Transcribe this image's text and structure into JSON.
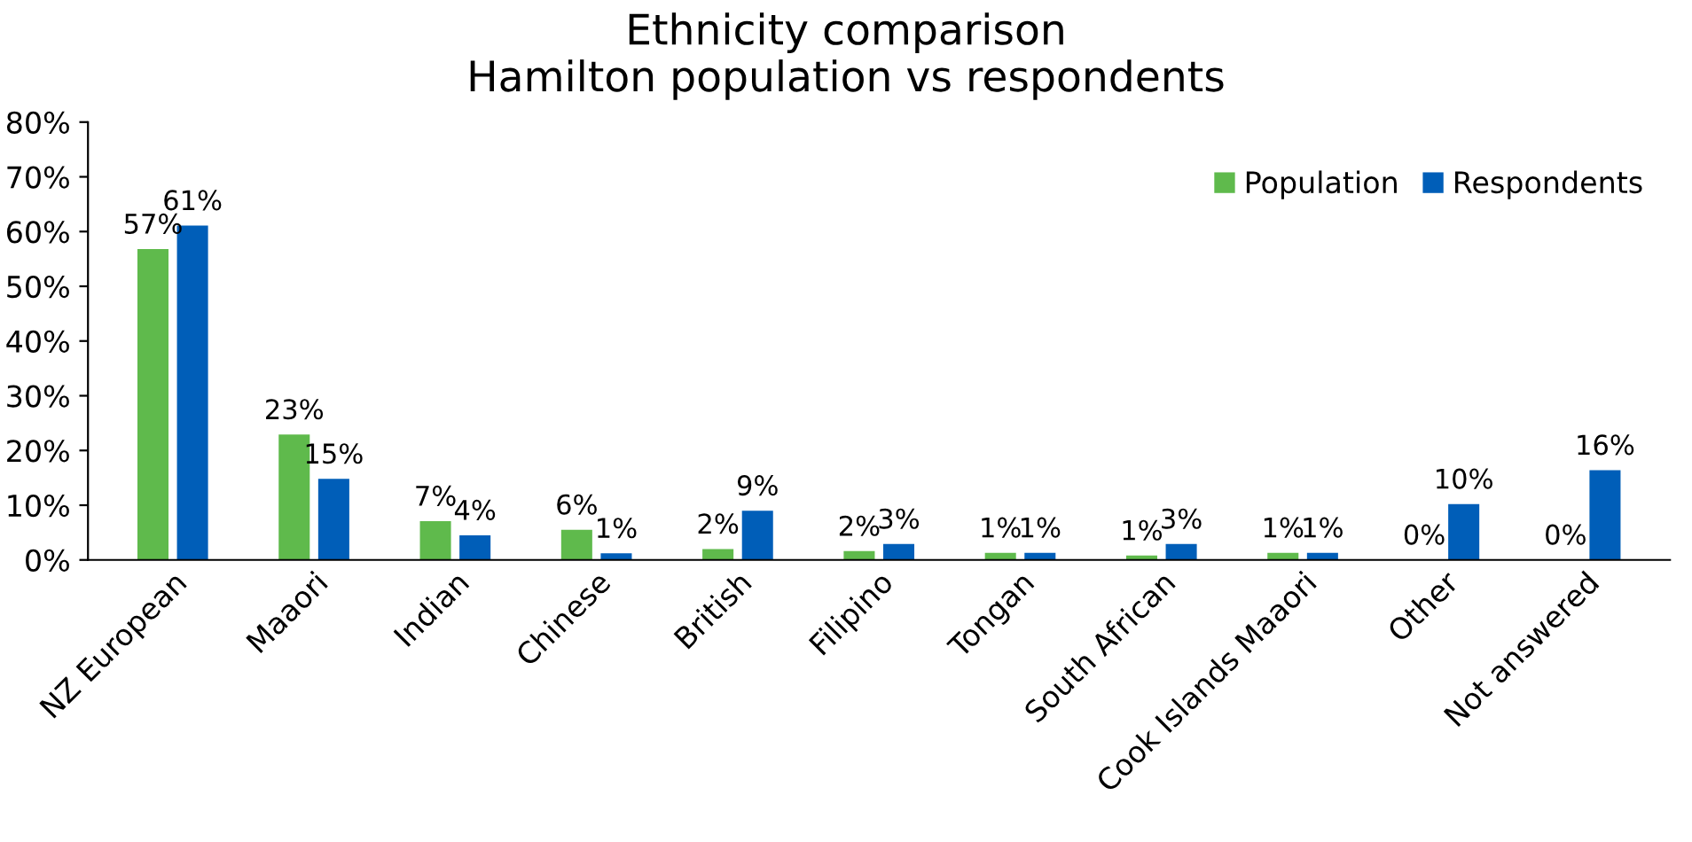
{
  "chart_data": {
    "type": "bar",
    "title": "Ethnicity comparison\nHamilton population vs respondents",
    "categories": [
      "NZ European",
      "Maaori",
      "Indian",
      "Chinese",
      "British",
      "Filipino",
      "Tongan",
      "South African",
      "Cook Islands Maaori",
      "Other",
      "Not answered"
    ],
    "series": [
      {
        "name": "Population",
        "color": "#5fba4c",
        "values": [
          56.8,
          22.9,
          7.1,
          5.5,
          2.0,
          1.6,
          1.3,
          0.8,
          1.3,
          0,
          0
        ],
        "value_labels": [
          "57%",
          "23%",
          "7%",
          "6%",
          "2%",
          "2%",
          "1%",
          "1%",
          "1%",
          "0%",
          "0%"
        ]
      },
      {
        "name": "Respondents",
        "color": "#005eb8",
        "values": [
          61.1,
          14.8,
          4.5,
          1.2,
          9.0,
          2.9,
          1.3,
          2.9,
          1.3,
          10.2,
          16.4
        ],
        "value_labels": [
          "61%",
          "15%",
          "4%",
          "1%",
          "9%",
          "3%",
          "1%",
          "3%",
          "1%",
          "10%",
          "16%"
        ]
      }
    ],
    "ylim": [
      0,
      80
    ],
    "yticks": [
      {
        "value": 0,
        "label": "0%"
      },
      {
        "value": 10,
        "label": "10%"
      },
      {
        "value": 20,
        "label": "20%"
      },
      {
        "value": 30,
        "label": "30%"
      },
      {
        "value": 40,
        "label": "40%"
      },
      {
        "value": 50,
        "label": "50%"
      },
      {
        "value": 60,
        "label": "60%"
      },
      {
        "value": 70,
        "label": "70%"
      },
      {
        "value": 80,
        "label": "80%"
      }
    ],
    "grid": false,
    "legend": "top right"
  }
}
